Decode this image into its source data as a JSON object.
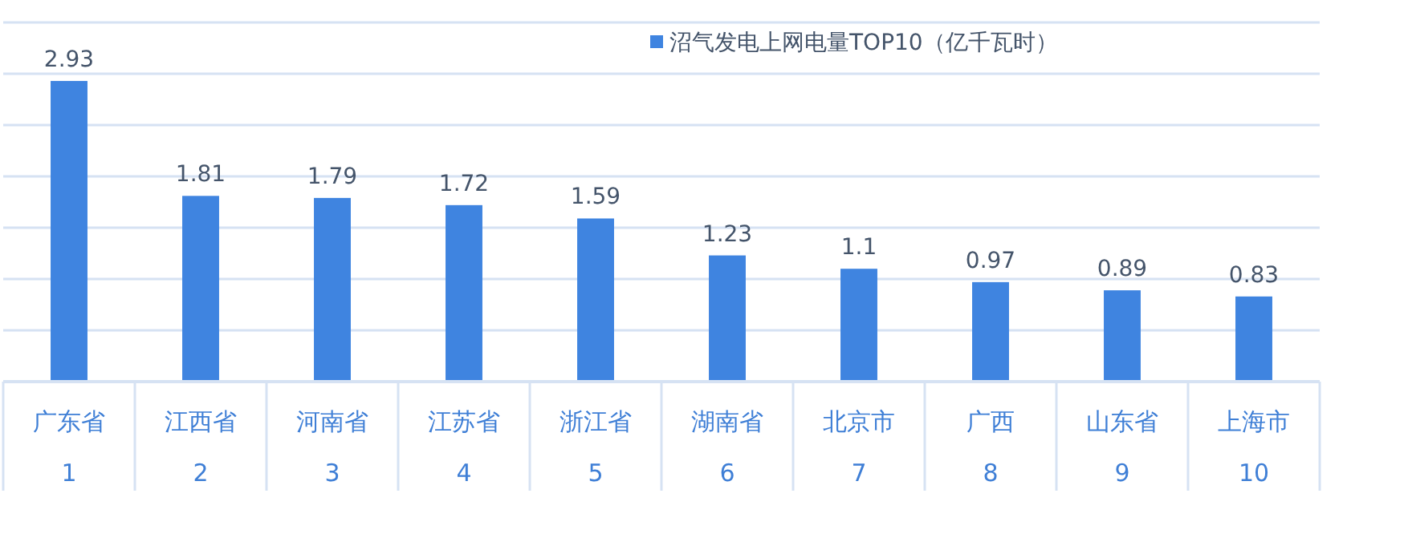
{
  "chart_data": {
    "type": "bar",
    "categories": [
      "广东省\n1",
      "江西省\n2",
      "河南省\n3",
      "江苏省\n4",
      "浙江省\n5",
      "湖南省\n6",
      "北京市\n7",
      "广西\n8",
      "山东省\n9",
      "上海市\n10"
    ],
    "series": [
      {
        "name": "沼气发电上网电量TOP10（亿千瓦时）",
        "color": "#3f84e0",
        "values": [
          2.93,
          1.81,
          1.79,
          1.72,
          1.59,
          1.23,
          1.1,
          0.97,
          0.89,
          0.83
        ]
      }
    ],
    "ylim": [
      0,
      3.5
    ],
    "yticks": [
      {
        "value": 0,
        "label": null
      },
      {
        "value": 0.5,
        "label": null
      },
      {
        "value": 1,
        "label": null
      },
      {
        "value": 1.5,
        "label": null
      },
      {
        "value": 2,
        "label": null
      },
      {
        "value": 2.5,
        "label": null
      },
      {
        "value": 3,
        "label": null
      },
      {
        "value": 3.5,
        "label": null
      }
    ],
    "tick_labels": "x",
    "grid": "y",
    "legend": "top right",
    "data_labels": true
  }
}
